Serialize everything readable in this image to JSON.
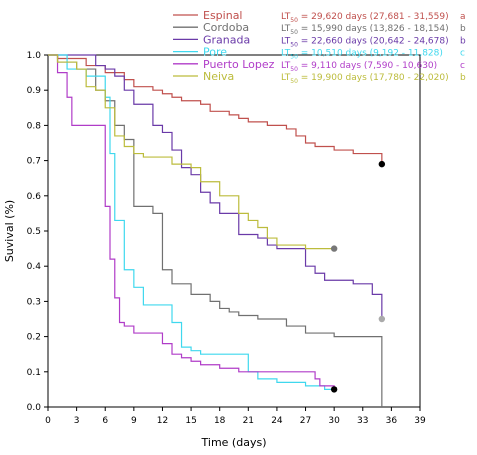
{
  "chart_data": {
    "type": "line",
    "step": true,
    "xlabel": "Time (days)",
    "ylabel": "Suvival (%)",
    "xlim": [
      0,
      39
    ],
    "ylim": [
      0,
      1.0
    ],
    "xticks": [
      "0",
      "3",
      "6",
      "9",
      "12",
      "15",
      "18",
      "21",
      "24",
      "27",
      "30",
      "33",
      "36",
      "39"
    ],
    "yticks": [
      "0.0",
      "0.1",
      "0.2",
      "0.3",
      "0.4",
      "0.5",
      "0.6",
      "0.7",
      "0.8",
      "0.9",
      "1.0"
    ],
    "legend_position": "top-right",
    "series": [
      {
        "name": "Espinal",
        "color": "#c0504d",
        "lt50_label": "LT",
        "lt50_sub": "50",
        "lt50_value": " = 29,620 days (27,681 - 31,559)",
        "group": "a",
        "end_marker": "#000000",
        "points": [
          [
            0,
            1.0
          ],
          [
            1,
            0.99
          ],
          [
            4,
            0.97
          ],
          [
            6,
            0.95
          ],
          [
            8,
            0.93
          ],
          [
            9,
            0.91
          ],
          [
            11,
            0.9
          ],
          [
            12,
            0.89
          ],
          [
            13,
            0.88
          ],
          [
            14,
            0.87
          ],
          [
            16,
            0.86
          ],
          [
            17,
            0.84
          ],
          [
            19,
            0.83
          ],
          [
            20,
            0.82
          ],
          [
            21,
            0.81
          ],
          [
            23,
            0.8
          ],
          [
            25,
            0.79
          ],
          [
            26,
            0.77
          ],
          [
            27,
            0.75
          ],
          [
            28,
            0.74
          ],
          [
            30,
            0.73
          ],
          [
            32,
            0.72
          ],
          [
            34,
            0.72
          ],
          [
            35,
            0.69
          ]
        ]
      },
      {
        "name": "Cordoba",
        "color": "#707070",
        "lt50_label": "LT",
        "lt50_sub": "50",
        "lt50_value": " = 15,990 days (13,826 - 18,154)",
        "group": "b",
        "end_marker": null,
        "points": [
          [
            0,
            1.0
          ],
          [
            1,
            0.98
          ],
          [
            3,
            0.96
          ],
          [
            5,
            0.9
          ],
          [
            6,
            0.87
          ],
          [
            7,
            0.8
          ],
          [
            8,
            0.76
          ],
          [
            9,
            0.57
          ],
          [
            11,
            0.55
          ],
          [
            12,
            0.39
          ],
          [
            13,
            0.35
          ],
          [
            15,
            0.32
          ],
          [
            17,
            0.3
          ],
          [
            18,
            0.28
          ],
          [
            19,
            0.27
          ],
          [
            20,
            0.26
          ],
          [
            22,
            0.25
          ],
          [
            25,
            0.23
          ],
          [
            27,
            0.21
          ],
          [
            30,
            0.2
          ],
          [
            32,
            0.2
          ],
          [
            35,
            0.2
          ],
          [
            35,
            0.0
          ]
        ]
      },
      {
        "name": "Granada",
        "color": "#6a3aa8",
        "lt50_label": "LT",
        "lt50_sub": "50",
        "lt50_value": " = 22,660 days (20,642 - 24,678)",
        "group": "b",
        "end_marker": "#aaaaaa",
        "points": [
          [
            0,
            1.0
          ],
          [
            5,
            0.97
          ],
          [
            6,
            0.96
          ],
          [
            7,
            0.94
          ],
          [
            8,
            0.9
          ],
          [
            9,
            0.86
          ],
          [
            11,
            0.8
          ],
          [
            12,
            0.78
          ],
          [
            13,
            0.73
          ],
          [
            14,
            0.68
          ],
          [
            15,
            0.66
          ],
          [
            16,
            0.61
          ],
          [
            17,
            0.58
          ],
          [
            18,
            0.55
          ],
          [
            20,
            0.49
          ],
          [
            22,
            0.48
          ],
          [
            23,
            0.46
          ],
          [
            24,
            0.45
          ],
          [
            27,
            0.4
          ],
          [
            28,
            0.38
          ],
          [
            29,
            0.36
          ],
          [
            32,
            0.35
          ],
          [
            34,
            0.32
          ],
          [
            35,
            0.29
          ],
          [
            35,
            0.25
          ]
        ]
      },
      {
        "name": "Pore",
        "color": "#3fd8ee",
        "lt50_label": "LT",
        "lt50_sub": "50",
        "lt50_value": " = 10,510 days (9,192 - 11,828)",
        "group": "c",
        "end_marker": null,
        "points": [
          [
            0,
            1.0
          ],
          [
            2,
            0.96
          ],
          [
            4,
            0.94
          ],
          [
            6,
            0.88
          ],
          [
            6.5,
            0.72
          ],
          [
            7,
            0.53
          ],
          [
            8,
            0.39
          ],
          [
            9,
            0.34
          ],
          [
            10,
            0.29
          ],
          [
            13,
            0.24
          ],
          [
            14,
            0.17
          ],
          [
            15,
            0.16
          ],
          [
            16,
            0.15
          ],
          [
            21,
            0.1
          ],
          [
            22,
            0.08
          ],
          [
            24,
            0.07
          ],
          [
            27,
            0.06
          ],
          [
            29,
            0.05
          ],
          [
            30,
            0.05
          ]
        ]
      },
      {
        "name": "Puerto Lopez",
        "color": "#b03cc8",
        "lt50_label": "LT",
        "lt50_sub": "50",
        "lt50_value": " = 9,110 days (7,590 - 10,630)",
        "group": "c",
        "end_marker": null,
        "points": [
          [
            0,
            1.0
          ],
          [
            1,
            0.95
          ],
          [
            2,
            0.88
          ],
          [
            2.5,
            0.8
          ],
          [
            6,
            0.57
          ],
          [
            6.5,
            0.42
          ],
          [
            7,
            0.31
          ],
          [
            7.5,
            0.24
          ],
          [
            8,
            0.23
          ],
          [
            9,
            0.21
          ],
          [
            12,
            0.18
          ],
          [
            13,
            0.15
          ],
          [
            14,
            0.14
          ],
          [
            15,
            0.13
          ],
          [
            16,
            0.12
          ],
          [
            18,
            0.11
          ],
          [
            20,
            0.1
          ],
          [
            28,
            0.08
          ],
          [
            28.5,
            0.06
          ],
          [
            30,
            0.05
          ]
        ]
      },
      {
        "name": "Neiva",
        "color": "#bcbc3c",
        "lt50_label": "LT",
        "lt50_sub": "50",
        "lt50_value": " = 19,900 days (17,780 - 22,020)",
        "group": "b",
        "end_marker": null,
        "points": [
          [
            0,
            1.0
          ],
          [
            1,
            0.98
          ],
          [
            3,
            0.96
          ],
          [
            4,
            0.91
          ],
          [
            5,
            0.9
          ],
          [
            6,
            0.85
          ],
          [
            7,
            0.77
          ],
          [
            8,
            0.74
          ],
          [
            9,
            0.72
          ],
          [
            10,
            0.71
          ],
          [
            13,
            0.69
          ],
          [
            15,
            0.68
          ],
          [
            16,
            0.64
          ],
          [
            18,
            0.6
          ],
          [
            20,
            0.55
          ],
          [
            21,
            0.53
          ],
          [
            22,
            0.51
          ],
          [
            23,
            0.48
          ],
          [
            24,
            0.46
          ],
          [
            27,
            0.45
          ],
          [
            30,
            0.45
          ]
        ]
      }
    ],
    "end_markers": [
      {
        "x": 35,
        "y": 0.69,
        "color": "#000000"
      },
      {
        "x": 30,
        "y": 0.45,
        "color": "#777777"
      },
      {
        "x": 35,
        "y": 0.25,
        "color": "#aaaaaa"
      },
      {
        "x": 30,
        "y": 0.05,
        "color": "#000000"
      }
    ]
  }
}
